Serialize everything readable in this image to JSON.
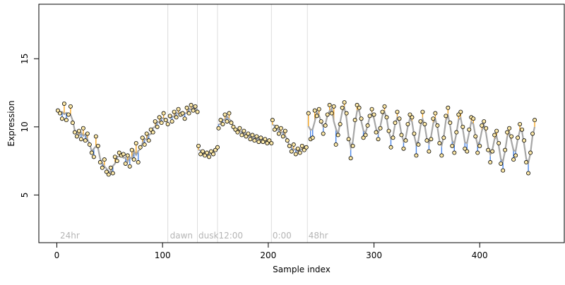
{
  "chart_data": {
    "type": "scatter",
    "title": "",
    "xlabel": "Sample index",
    "ylabel": "Expression",
    "xlim": [
      -17,
      480
    ],
    "ylim": [
      1.5,
      19
    ],
    "xticks": [
      0,
      100,
      200,
      300,
      400
    ],
    "yticks": [
      5,
      10,
      15
    ],
    "grid": false,
    "legend": "none",
    "colors": {
      "up_segment": "#f5a623",
      "down_segment": "#4a86e8",
      "fit_line": "#a6a6a6",
      "point_fill": "#fde9a8",
      "point_stroke": "#000000",
      "vline": "#dcdcdc",
      "annotation": "#b5b5b5"
    },
    "vlines": [
      105,
      133,
      152,
      203,
      237
    ],
    "annotations": [
      {
        "x": 3,
        "label": "24hr"
      },
      {
        "x": 107,
        "label": "dawn"
      },
      {
        "x": 134,
        "label": "dusk"
      },
      {
        "x": 153,
        "label": "12:00"
      },
      {
        "x": 204,
        "label": "0:00"
      },
      {
        "x": 238,
        "label": "48hr"
      }
    ],
    "points": [
      {
        "x": 1,
        "y": 11.2
      },
      {
        "x": 3,
        "y": 11.0
      },
      {
        "x": 5,
        "y": 10.6
      },
      {
        "x": 7,
        "y": 11.7
      },
      {
        "x": 9,
        "y": 10.5
      },
      {
        "x": 11,
        "y": 10.9
      },
      {
        "x": 13,
        "y": 11.5
      },
      {
        "x": 15,
        "y": 10.3
      },
      {
        "x": 17,
        "y": 9.6
      },
      {
        "x": 19,
        "y": 9.3
      },
      {
        "x": 21,
        "y": 9.7
      },
      {
        "x": 23,
        "y": 9.1
      },
      {
        "x": 25,
        "y": 9.9
      },
      {
        "x": 27,
        "y": 9.0
      },
      {
        "x": 29,
        "y": 9.5
      },
      {
        "x": 31,
        "y": 8.7
      },
      {
        "x": 33,
        "y": 8.1
      },
      {
        "x": 35,
        "y": 7.8
      },
      {
        "x": 37,
        "y": 9.3
      },
      {
        "x": 39,
        "y": 8.6
      },
      {
        "x": 41,
        "y": 7.4
      },
      {
        "x": 43,
        "y": 7.0
      },
      {
        "x": 45,
        "y": 7.6
      },
      {
        "x": 47,
        "y": 6.7
      },
      {
        "x": 49,
        "y": 6.5
      },
      {
        "x": 51,
        "y": 7.0
      },
      {
        "x": 53,
        "y": 6.6
      },
      {
        "x": 55,
        "y": 7.8
      },
      {
        "x": 57,
        "y": 7.5
      },
      {
        "x": 59,
        "y": 8.1
      },
      {
        "x": 61,
        "y": 7.9
      },
      {
        "x": 63,
        "y": 8.0
      },
      {
        "x": 65,
        "y": 7.3
      },
      {
        "x": 67,
        "y": 7.9
      },
      {
        "x": 69,
        "y": 7.1
      },
      {
        "x": 71,
        "y": 8.3
      },
      {
        "x": 73,
        "y": 7.6
      },
      {
        "x": 75,
        "y": 8.8
      },
      {
        "x": 77,
        "y": 7.4
      },
      {
        "x": 79,
        "y": 8.5
      },
      {
        "x": 81,
        "y": 9.2
      },
      {
        "x": 83,
        "y": 8.7
      },
      {
        "x": 85,
        "y": 9.5
      },
      {
        "x": 87,
        "y": 9.0
      },
      {
        "x": 89,
        "y": 9.8
      },
      {
        "x": 91,
        "y": 9.6
      },
      {
        "x": 93,
        "y": 10.4
      },
      {
        "x": 95,
        "y": 10.0
      },
      {
        "x": 97,
        "y": 10.7
      },
      {
        "x": 99,
        "y": 10.3
      },
      {
        "x": 101,
        "y": 11.0
      },
      {
        "x": 103,
        "y": 10.5
      },
      {
        "x": 105,
        "y": 10.2
      },
      {
        "x": 107,
        "y": 10.8
      },
      {
        "x": 109,
        "y": 10.4
      },
      {
        "x": 111,
        "y": 11.1
      },
      {
        "x": 113,
        "y": 10.7
      },
      {
        "x": 115,
        "y": 11.3
      },
      {
        "x": 117,
        "y": 10.9
      },
      {
        "x": 119,
        "y": 11.0
      },
      {
        "x": 121,
        "y": 10.6
      },
      {
        "x": 123,
        "y": 11.4
      },
      {
        "x": 125,
        "y": 11.0
      },
      {
        "x": 127,
        "y": 11.6
      },
      {
        "x": 129,
        "y": 11.2
      },
      {
        "x": 131,
        "y": 11.5
      },
      {
        "x": 133,
        "y": 11.1
      },
      {
        "x": 134,
        "y": 8.6
      },
      {
        "x": 136,
        "y": 8.0
      },
      {
        "x": 138,
        "y": 8.2
      },
      {
        "x": 140,
        "y": 7.9
      },
      {
        "x": 142,
        "y": 8.1
      },
      {
        "x": 144,
        "y": 7.8
      },
      {
        "x": 146,
        "y": 8.2
      },
      {
        "x": 148,
        "y": 8.0
      },
      {
        "x": 150,
        "y": 8.3
      },
      {
        "x": 152,
        "y": 8.5
      },
      {
        "x": 153,
        "y": 9.9
      },
      {
        "x": 155,
        "y": 10.5
      },
      {
        "x": 157,
        "y": 10.2
      },
      {
        "x": 159,
        "y": 10.9
      },
      {
        "x": 161,
        "y": 10.4
      },
      {
        "x": 163,
        "y": 11.0
      },
      {
        "x": 165,
        "y": 10.3
      },
      {
        "x": 167,
        "y": 10.0
      },
      {
        "x": 169,
        "y": 9.8
      },
      {
        "x": 171,
        "y": 9.6
      },
      {
        "x": 173,
        "y": 9.9
      },
      {
        "x": 175,
        "y": 9.4
      },
      {
        "x": 177,
        "y": 9.7
      },
      {
        "x": 179,
        "y": 9.3
      },
      {
        "x": 181,
        "y": 9.5
      },
      {
        "x": 183,
        "y": 9.1
      },
      {
        "x": 185,
        "y": 9.4
      },
      {
        "x": 187,
        "y": 9.0
      },
      {
        "x": 189,
        "y": 9.3
      },
      {
        "x": 191,
        "y": 8.9
      },
      {
        "x": 193,
        "y": 9.2
      },
      {
        "x": 195,
        "y": 8.9
      },
      {
        "x": 197,
        "y": 9.1
      },
      {
        "x": 199,
        "y": 8.8
      },
      {
        "x": 201,
        "y": 9.0
      },
      {
        "x": 203,
        "y": 8.8
      },
      {
        "x": 204,
        "y": 10.5
      },
      {
        "x": 206,
        "y": 9.8
      },
      {
        "x": 208,
        "y": 10.0
      },
      {
        "x": 210,
        "y": 9.5
      },
      {
        "x": 212,
        "y": 9.9
      },
      {
        "x": 214,
        "y": 9.3
      },
      {
        "x": 216,
        "y": 9.7
      },
      {
        "x": 218,
        "y": 9.0
      },
      {
        "x": 220,
        "y": 8.6
      },
      {
        "x": 222,
        "y": 8.2
      },
      {
        "x": 224,
        "y": 8.7
      },
      {
        "x": 226,
        "y": 8.0
      },
      {
        "x": 228,
        "y": 8.4
      },
      {
        "x": 230,
        "y": 8.1
      },
      {
        "x": 232,
        "y": 8.6
      },
      {
        "x": 234,
        "y": 8.3
      },
      {
        "x": 236,
        "y": 8.5
      },
      {
        "x": 238,
        "y": 11.0
      },
      {
        "x": 240,
        "y": 9.1
      },
      {
        "x": 242,
        "y": 9.2
      },
      {
        "x": 244,
        "y": 11.2
      },
      {
        "x": 246,
        "y": 10.8
      },
      {
        "x": 248,
        "y": 11.3
      },
      {
        "x": 250,
        "y": 10.4
      },
      {
        "x": 252,
        "y": 9.5
      },
      {
        "x": 254,
        "y": 10.1
      },
      {
        "x": 256,
        "y": 10.9
      },
      {
        "x": 258,
        "y": 11.6
      },
      {
        "x": 260,
        "y": 11.0
      },
      {
        "x": 262,
        "y": 11.5
      },
      {
        "x": 264,
        "y": 8.7
      },
      {
        "x": 266,
        "y": 9.4
      },
      {
        "x": 268,
        "y": 10.2
      },
      {
        "x": 270,
        "y": 11.4
      },
      {
        "x": 272,
        "y": 11.8
      },
      {
        "x": 274,
        "y": 11.0
      },
      {
        "x": 276,
        "y": 9.1
      },
      {
        "x": 278,
        "y": 7.7
      },
      {
        "x": 280,
        "y": 8.6
      },
      {
        "x": 282,
        "y": 10.5
      },
      {
        "x": 284,
        "y": 11.6
      },
      {
        "x": 286,
        "y": 11.4
      },
      {
        "x": 288,
        "y": 10.6
      },
      {
        "x": 290,
        "y": 9.2
      },
      {
        "x": 292,
        "y": 9.4
      },
      {
        "x": 294,
        "y": 10.1
      },
      {
        "x": 296,
        "y": 10.8
      },
      {
        "x": 298,
        "y": 11.3
      },
      {
        "x": 300,
        "y": 10.9
      },
      {
        "x": 302,
        "y": 9.6
      },
      {
        "x": 304,
        "y": 9.1
      },
      {
        "x": 306,
        "y": 9.9
      },
      {
        "x": 308,
        "y": 11.1
      },
      {
        "x": 310,
        "y": 11.5
      },
      {
        "x": 312,
        "y": 10.7
      },
      {
        "x": 314,
        "y": 9.7
      },
      {
        "x": 316,
        "y": 8.5
      },
      {
        "x": 318,
        "y": 9.2
      },
      {
        "x": 320,
        "y": 10.3
      },
      {
        "x": 322,
        "y": 11.1
      },
      {
        "x": 324,
        "y": 10.6
      },
      {
        "x": 326,
        "y": 9.4
      },
      {
        "x": 328,
        "y": 8.4
      },
      {
        "x": 330,
        "y": 9.0
      },
      {
        "x": 332,
        "y": 10.2
      },
      {
        "x": 334,
        "y": 10.9
      },
      {
        "x": 336,
        "y": 10.7
      },
      {
        "x": 338,
        "y": 9.5
      },
      {
        "x": 340,
        "y": 7.9
      },
      {
        "x": 342,
        "y": 8.7
      },
      {
        "x": 344,
        "y": 10.4
      },
      {
        "x": 346,
        "y": 11.1
      },
      {
        "x": 348,
        "y": 10.2
      },
      {
        "x": 350,
        "y": 9.0
      },
      {
        "x": 352,
        "y": 8.2
      },
      {
        "x": 354,
        "y": 9.1
      },
      {
        "x": 356,
        "y": 10.6
      },
      {
        "x": 358,
        "y": 11.0
      },
      {
        "x": 360,
        "y": 10.1
      },
      {
        "x": 362,
        "y": 8.8
      },
      {
        "x": 364,
        "y": 7.9
      },
      {
        "x": 366,
        "y": 9.2
      },
      {
        "x": 368,
        "y": 10.8
      },
      {
        "x": 370,
        "y": 11.4
      },
      {
        "x": 372,
        "y": 10.3
      },
      {
        "x": 374,
        "y": 8.6
      },
      {
        "x": 376,
        "y": 8.1
      },
      {
        "x": 378,
        "y": 9.6
      },
      {
        "x": 380,
        "y": 10.9
      },
      {
        "x": 382,
        "y": 11.1
      },
      {
        "x": 384,
        "y": 10.0
      },
      {
        "x": 386,
        "y": 8.4
      },
      {
        "x": 388,
        "y": 8.2
      },
      {
        "x": 390,
        "y": 9.8
      },
      {
        "x": 392,
        "y": 10.7
      },
      {
        "x": 394,
        "y": 10.6
      },
      {
        "x": 396,
        "y": 9.3
      },
      {
        "x": 398,
        "y": 8.1
      },
      {
        "x": 400,
        "y": 8.6
      },
      {
        "x": 402,
        "y": 10.1
      },
      {
        "x": 404,
        "y": 10.4
      },
      {
        "x": 406,
        "y": 9.9
      },
      {
        "x": 408,
        "y": 8.3
      },
      {
        "x": 410,
        "y": 7.4
      },
      {
        "x": 412,
        "y": 8.2
      },
      {
        "x": 414,
        "y": 9.4
      },
      {
        "x": 416,
        "y": 9.7
      },
      {
        "x": 418,
        "y": 8.8
      },
      {
        "x": 420,
        "y": 7.3
      },
      {
        "x": 422,
        "y": 6.8
      },
      {
        "x": 424,
        "y": 8.3
      },
      {
        "x": 426,
        "y": 9.6
      },
      {
        "x": 428,
        "y": 9.9
      },
      {
        "x": 430,
        "y": 9.3
      },
      {
        "x": 432,
        "y": 7.6
      },
      {
        "x": 434,
        "y": 7.9
      },
      {
        "x": 436,
        "y": 9.2
      },
      {
        "x": 438,
        "y": 10.2
      },
      {
        "x": 440,
        "y": 9.8
      },
      {
        "x": 442,
        "y": 9.0
      },
      {
        "x": 444,
        "y": 7.4
      },
      {
        "x": 446,
        "y": 6.6
      },
      {
        "x": 448,
        "y": 8.1
      },
      {
        "x": 450,
        "y": 9.5
      },
      {
        "x": 452,
        "y": 10.5
      }
    ]
  }
}
